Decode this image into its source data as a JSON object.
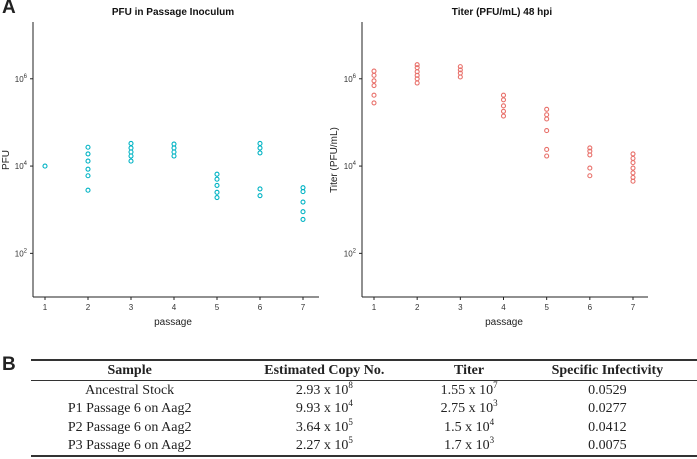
{
  "panel_labels": {
    "a": "A",
    "b": "B"
  },
  "colors": {
    "left_points": "#00b3c4",
    "right_points": "#e8706a",
    "axis": "#222222"
  },
  "chart_data": [
    {
      "type": "scatter",
      "title": "PFU in Passage Inoculum",
      "xlabel": "passage",
      "ylabel": "PFU",
      "x_ticks": [
        "1",
        "2",
        "3",
        "4",
        "5",
        "6",
        "7"
      ],
      "y_scale": "log10",
      "ylim": [
        10,
        20000000
      ],
      "y_ticks": [
        {
          "value": 100,
          "base": "10",
          "exp": "2"
        },
        {
          "value": 10000,
          "base": "10",
          "exp": "4"
        },
        {
          "value": 1000000,
          "base": "10",
          "exp": "6"
        }
      ],
      "points": [
        {
          "x": 1,
          "y": 10000
        },
        {
          "x": 2,
          "y": 2800
        },
        {
          "x": 2,
          "y": 6000
        },
        {
          "x": 2,
          "y": 8500
        },
        {
          "x": 2,
          "y": 13000
        },
        {
          "x": 2,
          "y": 19000
        },
        {
          "x": 2,
          "y": 27000
        },
        {
          "x": 3,
          "y": 13000
        },
        {
          "x": 3,
          "y": 17000
        },
        {
          "x": 3,
          "y": 21000
        },
        {
          "x": 3,
          "y": 26000
        },
        {
          "x": 3,
          "y": 33000
        },
        {
          "x": 4,
          "y": 17000
        },
        {
          "x": 4,
          "y": 21000
        },
        {
          "x": 4,
          "y": 26000
        },
        {
          "x": 4,
          "y": 32000
        },
        {
          "x": 5,
          "y": 1900
        },
        {
          "x": 5,
          "y": 2500
        },
        {
          "x": 5,
          "y": 3600
        },
        {
          "x": 5,
          "y": 5000
        },
        {
          "x": 5,
          "y": 6500
        },
        {
          "x": 6,
          "y": 2100
        },
        {
          "x": 6,
          "y": 3000
        },
        {
          "x": 6,
          "y": 20000
        },
        {
          "x": 6,
          "y": 26000
        },
        {
          "x": 6,
          "y": 33000
        },
        {
          "x": 7,
          "y": 600
        },
        {
          "x": 7,
          "y": 900
        },
        {
          "x": 7,
          "y": 1500
        },
        {
          "x": 7,
          "y": 2600
        },
        {
          "x": 7,
          "y": 3200
        }
      ]
    },
    {
      "type": "scatter",
      "title": "Titer (PFU/mL) 48 hpi",
      "xlabel": "passage",
      "ylabel": "Titer (PFU/mL)",
      "x_ticks": [
        "1",
        "2",
        "3",
        "4",
        "5",
        "6",
        "7"
      ],
      "y_scale": "log10",
      "ylim": [
        10,
        20000000
      ],
      "y_ticks": [
        {
          "value": 100,
          "base": "10",
          "exp": "2"
        },
        {
          "value": 10000,
          "base": "10",
          "exp": "4"
        },
        {
          "value": 1000000,
          "base": "10",
          "exp": "6"
        }
      ],
      "points": [
        {
          "x": 1,
          "y": 280000
        },
        {
          "x": 1,
          "y": 420000
        },
        {
          "x": 1,
          "y": 700000
        },
        {
          "x": 1,
          "y": 900000
        },
        {
          "x": 1,
          "y": 1200000
        },
        {
          "x": 1,
          "y": 1500000
        },
        {
          "x": 2,
          "y": 800000
        },
        {
          "x": 2,
          "y": 1000000
        },
        {
          "x": 2,
          "y": 1200000
        },
        {
          "x": 2,
          "y": 1450000
        },
        {
          "x": 2,
          "y": 1800000
        },
        {
          "x": 2,
          "y": 2100000
        },
        {
          "x": 3,
          "y": 1100000
        },
        {
          "x": 3,
          "y": 1350000
        },
        {
          "x": 3,
          "y": 1600000
        },
        {
          "x": 3,
          "y": 1900000
        },
        {
          "x": 4,
          "y": 140000
        },
        {
          "x": 4,
          "y": 180000
        },
        {
          "x": 4,
          "y": 240000
        },
        {
          "x": 4,
          "y": 330000
        },
        {
          "x": 4,
          "y": 420000
        },
        {
          "x": 5,
          "y": 17000
        },
        {
          "x": 5,
          "y": 24000
        },
        {
          "x": 5,
          "y": 65000
        },
        {
          "x": 5,
          "y": 120000
        },
        {
          "x": 5,
          "y": 150000
        },
        {
          "x": 5,
          "y": 200000
        },
        {
          "x": 6,
          "y": 6000
        },
        {
          "x": 6,
          "y": 9000
        },
        {
          "x": 6,
          "y": 18000
        },
        {
          "x": 6,
          "y": 22000
        },
        {
          "x": 6,
          "y": 26000
        },
        {
          "x": 7,
          "y": 4500
        },
        {
          "x": 7,
          "y": 5500
        },
        {
          "x": 7,
          "y": 7000
        },
        {
          "x": 7,
          "y": 9000
        },
        {
          "x": 7,
          "y": 12000
        },
        {
          "x": 7,
          "y": 15000
        },
        {
          "x": 7,
          "y": 19000
        }
      ]
    }
  ],
  "table": {
    "headers": [
      "Sample",
      "Estimated Copy No.",
      "Titer",
      "Specific Infectivity"
    ],
    "rows": [
      {
        "sample": "Ancestral Stock",
        "copy_base": "2.93 x 10",
        "copy_exp": "8",
        "titer_base": "1.55 x 10",
        "titer_exp": "7",
        "infectivity": "0.0529"
      },
      {
        "sample": "P1 Passage 6 on Aag2",
        "copy_base": "9.93 x 10",
        "copy_exp": "4",
        "titer_base": "2.75 x 10",
        "titer_exp": "3",
        "infectivity": "0.0277"
      },
      {
        "sample": "P2 Passage 6 on Aag2",
        "copy_base": "3.64 x 10",
        "copy_exp": "5",
        "titer_base": "1.5 x 10",
        "titer_exp": "4",
        "infectivity": "0.0412"
      },
      {
        "sample": "P3 Passage 6 on Aag2",
        "copy_base": "2.27 x 10",
        "copy_exp": "5",
        "titer_base": "1.7 x 10",
        "titer_exp": "3",
        "infectivity": "0.0075"
      }
    ]
  }
}
